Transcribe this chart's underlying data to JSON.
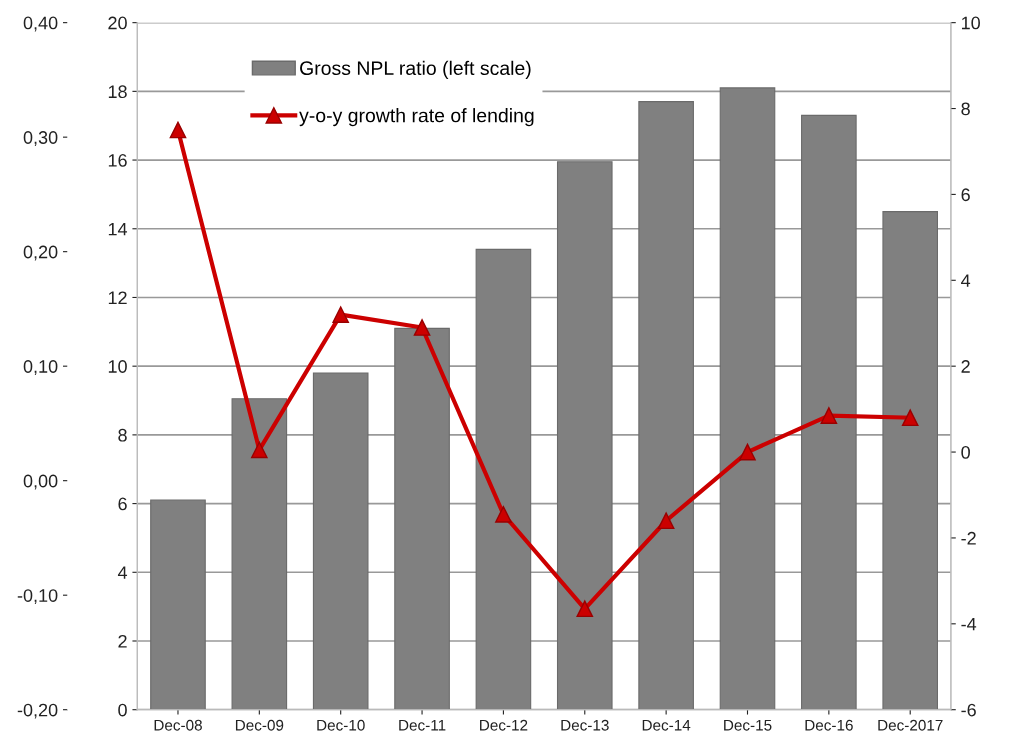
{
  "chart_data": {
    "type": "bar",
    "categories": [
      "Dec-08",
      "Dec-09",
      "Dec-10",
      "Dec-11",
      "Dec-12",
      "Dec-13",
      "Dec-14",
      "Dec-15",
      "Dec-16",
      "Dec-2017"
    ],
    "series": [
      {
        "name": "Gross NPL ratio (left scale)",
        "color": "#808080",
        "values": [
          6.1,
          9.05,
          9.8,
          11.1,
          13.4,
          15.95,
          17.7,
          18.1,
          17.3,
          14.5
        ]
      },
      {
        "name": "y-o-y growth rate of lending",
        "type": "line",
        "axis": "y2",
        "color": "#cc0000",
        "marker": "triangle",
        "values": [
          7.5,
          0.05,
          3.2,
          2.9,
          -1.45,
          -3.65,
          -1.6,
          0.0,
          0.85,
          0.8
        ]
      }
    ],
    "ylim": [
      0,
      20
    ],
    "yticks": [
      0,
      2,
      4,
      6,
      8,
      10,
      12,
      14,
      16,
      18,
      20
    ],
    "y2lim": [
      -6,
      10
    ],
    "y2ticks": [
      -6,
      -4,
      -2,
      0,
      2,
      4,
      6,
      8,
      10
    ],
    "y3lim": [
      -0.2,
      0.4
    ],
    "y3ticks": [
      {
        "value": -0.2,
        "label": "-0,20"
      },
      {
        "value": -0.1,
        "label": "-0,10"
      },
      {
        "value": 0,
        "label": "0,00"
      },
      {
        "value": 0.1,
        "label": "0,10"
      },
      {
        "value": 0.2,
        "label": "0,20"
      },
      {
        "value": 0.3,
        "label": "0,30"
      },
      {
        "value": 0.4,
        "label": "0,40"
      }
    ],
    "grid": "y",
    "legend": "top left"
  }
}
